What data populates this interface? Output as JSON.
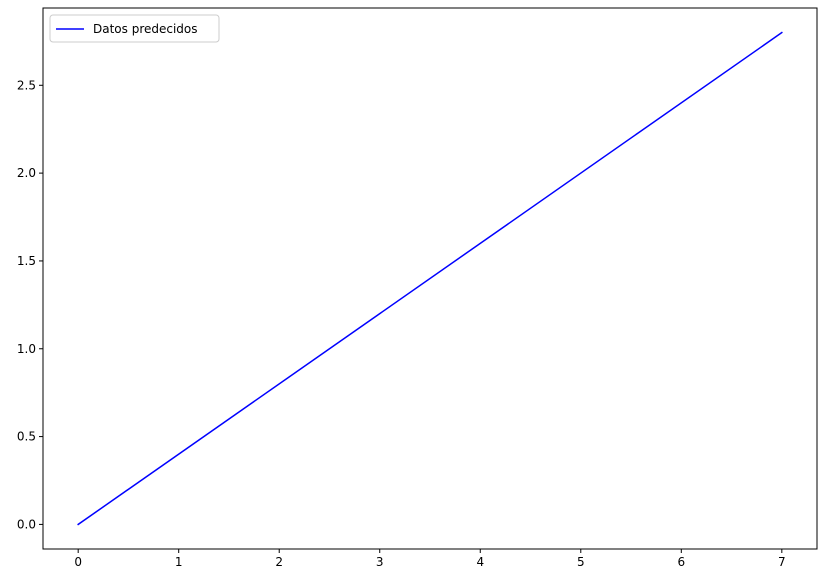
{
  "chart_data": {
    "type": "line",
    "title": "",
    "xlabel": "",
    "ylabel": "",
    "xlim": [
      -0.35,
      7.35
    ],
    "ylim": [
      -0.14,
      2.94
    ],
    "x_ticks": [
      0,
      1,
      2,
      3,
      4,
      5,
      6,
      7
    ],
    "x_tick_labels": [
      "0",
      "1",
      "2",
      "3",
      "4",
      "5",
      "6",
      "7"
    ],
    "y_ticks": [
      0.0,
      0.5,
      1.0,
      1.5,
      2.0,
      2.5
    ],
    "y_tick_labels": [
      "0.0",
      "0.5",
      "1.0",
      "1.5",
      "2.0",
      "2.5"
    ],
    "grid": false,
    "legend_position": "upper-left",
    "series": [
      {
        "name": "Datos predecidos",
        "color": "#0000ff",
        "x": [
          0,
          7
        ],
        "y": [
          0.0,
          2.8
        ]
      }
    ]
  }
}
